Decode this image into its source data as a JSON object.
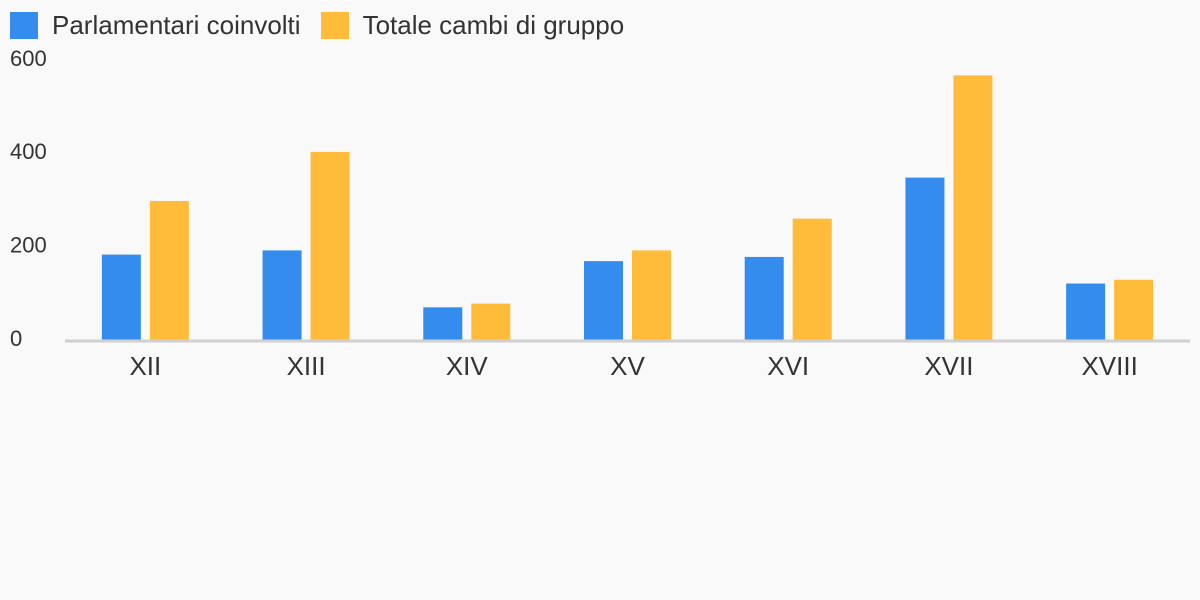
{
  "colors": {
    "series_1": "#348cef",
    "series_2": "#ffbb39",
    "axis": "#d0d0d0",
    "text": "#333333",
    "background": "#f9f9f9"
  },
  "chart_data": {
    "type": "bar",
    "title": "",
    "xlabel": "",
    "ylabel": "",
    "ylim": [
      0,
      600
    ],
    "yticks": [
      0,
      200,
      400,
      600
    ],
    "grid": false,
    "legend_position": "top-left",
    "categories": [
      "XII",
      "XIII",
      "XIV",
      "XV",
      "XVI",
      "XVII",
      "XVIII"
    ],
    "series": [
      {
        "name": "Parlamentari coinvolti",
        "color": "#348cef",
        "values": [
          183,
          192,
          70,
          169,
          178,
          348,
          121
        ]
      },
      {
        "name": "Totale cambi di gruppo",
        "color": "#ffbb39",
        "values": [
          298,
          403,
          78,
          192,
          260,
          567,
          129
        ]
      }
    ]
  }
}
